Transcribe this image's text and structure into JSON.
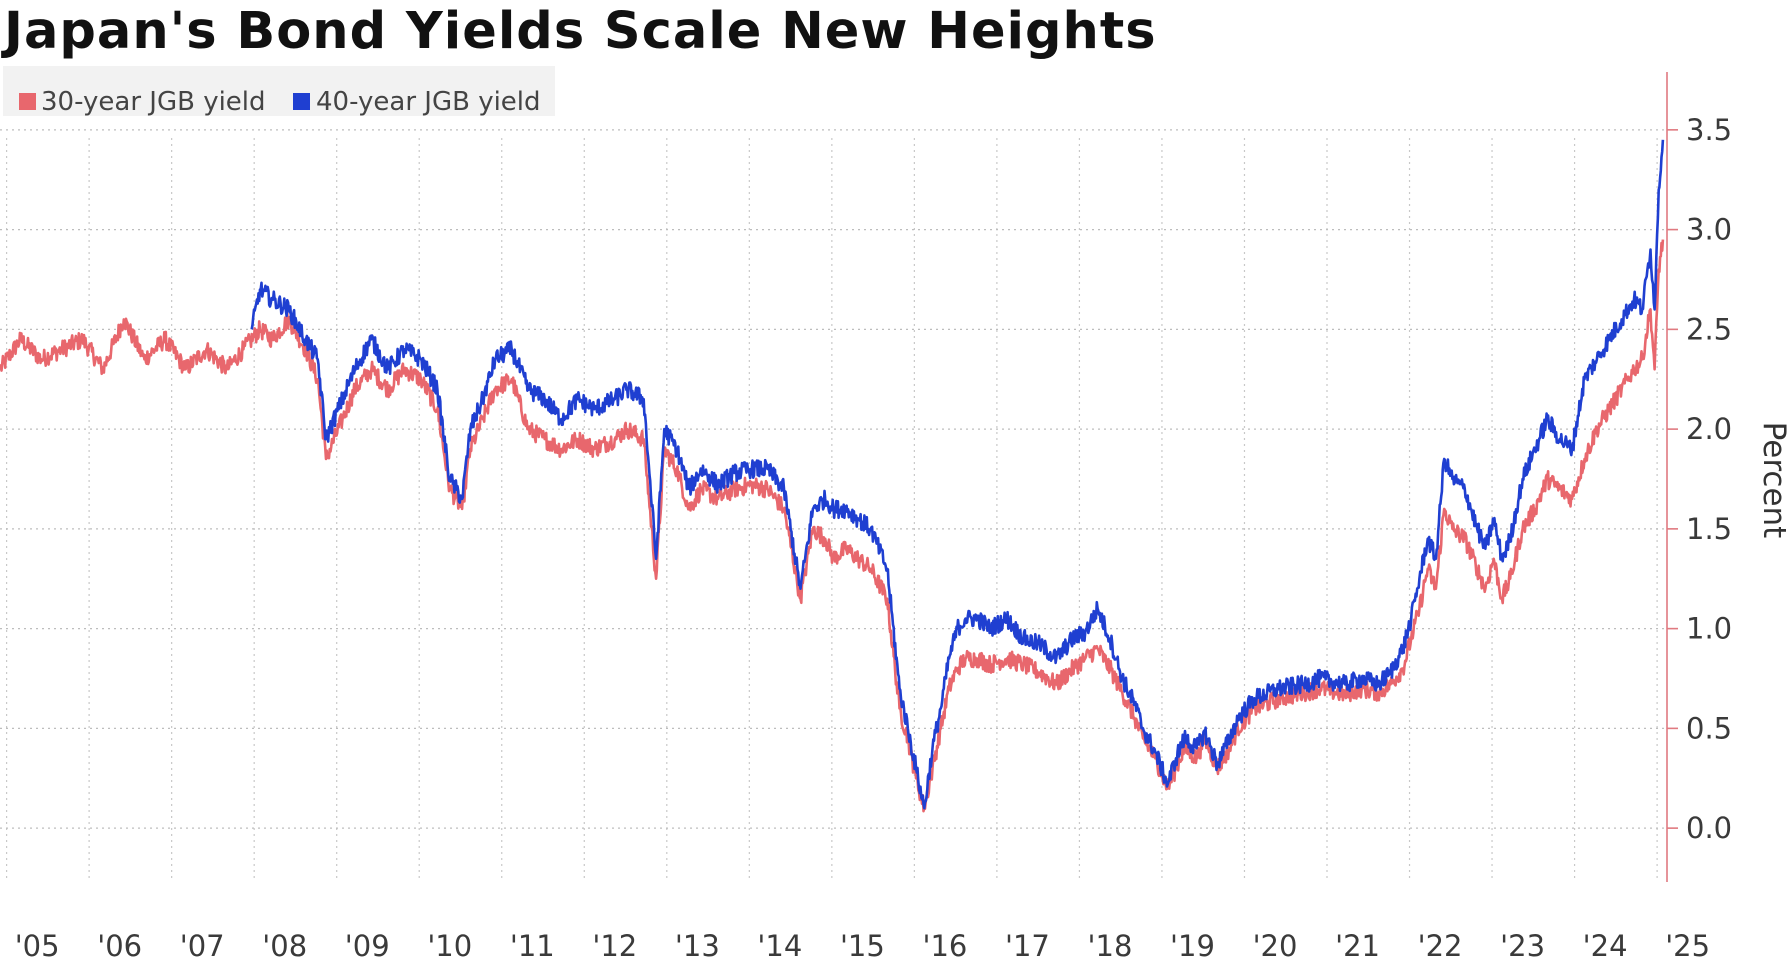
{
  "chart_data": {
    "type": "line",
    "title": "Japan's Bond Yields Scale New Heights",
    "ylabel": "Percent",
    "ylim": [
      -0.27,
      3.82
    ],
    "xlim": [
      2005.0,
      2025.2
    ],
    "y_ticks": [
      {
        "value": 0.0,
        "label": "0.0"
      },
      {
        "value": 0.5,
        "label": "0.5"
      },
      {
        "value": 1.0,
        "label": "1.0"
      },
      {
        "value": 1.5,
        "label": "1.5"
      },
      {
        "value": 2.0,
        "label": "2.0"
      },
      {
        "value": 2.5,
        "label": "2.5"
      },
      {
        "value": 3.0,
        "label": "3.0"
      },
      {
        "value": 3.5,
        "label": "3.5"
      }
    ],
    "x_ticks": [
      {
        "value": 2005,
        "label": "'05"
      },
      {
        "value": 2006,
        "label": "'06"
      },
      {
        "value": 2007,
        "label": "'07"
      },
      {
        "value": 2008,
        "label": "'08"
      },
      {
        "value": 2009,
        "label": "'09"
      },
      {
        "value": 2010,
        "label": "'10"
      },
      {
        "value": 2011,
        "label": "'11"
      },
      {
        "value": 2012,
        "label": "'12"
      },
      {
        "value": 2013,
        "label": "'13"
      },
      {
        "value": 2014,
        "label": "'14"
      },
      {
        "value": 2015,
        "label": "'15"
      },
      {
        "value": 2016,
        "label": "'16"
      },
      {
        "value": 2017,
        "label": "'17"
      },
      {
        "value": 2018,
        "label": "'18"
      },
      {
        "value": 2019,
        "label": "'19"
      },
      {
        "value": 2020,
        "label": "'20"
      },
      {
        "value": 2021,
        "label": "'21"
      },
      {
        "value": 2022,
        "label": "'22"
      },
      {
        "value": 2023,
        "label": "'23"
      },
      {
        "value": 2024,
        "label": "'24"
      },
      {
        "value": 2025,
        "label": "'25"
      }
    ],
    "grid": true,
    "legend": "top-left",
    "series": [
      {
        "name": "30-year JGB yield",
        "color": "#e8676d",
        "x": [
          2005.0,
          2005.25,
          2005.5,
          2005.75,
          2006.0,
          2006.25,
          2006.5,
          2006.75,
          2007.0,
          2007.25,
          2007.5,
          2007.75,
          2007.95,
          2008.15,
          2008.3,
          2008.5,
          2008.7,
          2008.85,
          2008.95,
          2009.15,
          2009.3,
          2009.5,
          2009.7,
          2009.9,
          2010.1,
          2010.3,
          2010.45,
          2010.6,
          2010.7,
          2010.85,
          2011.0,
          2011.2,
          2011.4,
          2011.6,
          2011.8,
          2012.0,
          2012.2,
          2012.45,
          2012.6,
          2012.8,
          2012.95,
          2013.05,
          2013.2,
          2013.35,
          2013.5,
          2013.7,
          2013.9,
          2014.1,
          2014.3,
          2014.5,
          2014.7,
          2014.85,
          2015.0,
          2015.1,
          2015.25,
          2015.4,
          2015.55,
          2015.75,
          2015.9,
          2016.0,
          2016.1,
          2016.2,
          2016.3,
          2016.4,
          2016.5,
          2016.6,
          2016.7,
          2016.85,
          2017.0,
          2017.2,
          2017.4,
          2017.6,
          2017.8,
          2018.0,
          2018.15,
          2018.3,
          2018.45,
          2018.6,
          2018.75,
          2018.85,
          2019.0,
          2019.15,
          2019.25,
          2019.35,
          2019.5,
          2019.6,
          2019.75,
          2019.9,
          2020.0,
          2020.2,
          2020.5,
          2020.8,
          2021.0,
          2021.3,
          2021.5,
          2021.7,
          2021.85,
          2022.0,
          2022.1,
          2022.2,
          2022.3,
          2022.4,
          2022.5,
          2022.6,
          2022.75,
          2022.9,
          2023.0,
          2023.1,
          2023.2,
          2023.3,
          2023.45,
          2023.6,
          2023.75,
          2023.9,
          2024.05,
          2024.2,
          2024.35,
          2024.5,
          2024.65,
          2024.8,
          2024.9,
          2025.0,
          2025.05,
          2025.1,
          2025.15
        ],
        "y": [
          2.3,
          2.45,
          2.35,
          2.4,
          2.45,
          2.3,
          2.55,
          2.35,
          2.45,
          2.3,
          2.4,
          2.3,
          2.4,
          2.5,
          2.45,
          2.55,
          2.4,
          2.25,
          1.85,
          2.05,
          2.2,
          2.3,
          2.2,
          2.3,
          2.25,
          2.1,
          1.7,
          1.6,
          1.9,
          2.05,
          2.2,
          2.25,
          2.0,
          1.95,
          1.9,
          1.95,
          1.9,
          1.95,
          2.0,
          1.95,
          1.25,
          1.9,
          1.8,
          1.6,
          1.7,
          1.65,
          1.7,
          1.72,
          1.7,
          1.6,
          1.15,
          1.5,
          1.45,
          1.35,
          1.4,
          1.35,
          1.3,
          1.15,
          0.6,
          0.45,
          0.25,
          0.1,
          0.3,
          0.5,
          0.7,
          0.8,
          0.85,
          0.85,
          0.82,
          0.85,
          0.82,
          0.78,
          0.72,
          0.8,
          0.85,
          0.9,
          0.8,
          0.68,
          0.55,
          0.45,
          0.35,
          0.2,
          0.3,
          0.4,
          0.35,
          0.45,
          0.3,
          0.4,
          0.5,
          0.6,
          0.65,
          0.68,
          0.7,
          0.67,
          0.7,
          0.68,
          0.72,
          0.8,
          0.95,
          1.1,
          1.3,
          1.2,
          1.6,
          1.5,
          1.45,
          1.3,
          1.2,
          1.35,
          1.15,
          1.25,
          1.5,
          1.6,
          1.75,
          1.7,
          1.65,
          1.85,
          2.0,
          2.1,
          2.2,
          2.3,
          2.35,
          2.6,
          2.3,
          2.8,
          2.95
        ]
      },
      {
        "name": "40-year JGB yield",
        "color": "#1f3fd1",
        "x": [
          2008.05,
          2008.15,
          2008.3,
          2008.5,
          2008.7,
          2008.85,
          2008.95,
          2009.15,
          2009.3,
          2009.5,
          2009.7,
          2009.9,
          2010.1,
          2010.3,
          2010.45,
          2010.6,
          2010.7,
          2010.85,
          2011.0,
          2011.2,
          2011.4,
          2011.6,
          2011.8,
          2012.0,
          2012.2,
          2012.45,
          2012.6,
          2012.8,
          2012.95,
          2013.05,
          2013.2,
          2013.35,
          2013.5,
          2013.7,
          2013.9,
          2014.1,
          2014.3,
          2014.5,
          2014.7,
          2014.85,
          2015.0,
          2015.1,
          2015.25,
          2015.4,
          2015.55,
          2015.75,
          2015.9,
          2016.0,
          2016.1,
          2016.2,
          2016.3,
          2016.4,
          2016.5,
          2016.6,
          2016.7,
          2016.85,
          2017.0,
          2017.2,
          2017.4,
          2017.6,
          2017.8,
          2018.0,
          2018.15,
          2018.3,
          2018.45,
          2018.6,
          2018.75,
          2018.85,
          2019.0,
          2019.15,
          2019.25,
          2019.35,
          2019.5,
          2019.6,
          2019.75,
          2019.9,
          2020.0,
          2020.2,
          2020.5,
          2020.8,
          2021.0,
          2021.3,
          2021.5,
          2021.7,
          2021.85,
          2022.0,
          2022.1,
          2022.2,
          2022.3,
          2022.4,
          2022.5,
          2022.6,
          2022.75,
          2022.9,
          2023.0,
          2023.1,
          2023.2,
          2023.3,
          2023.45,
          2023.6,
          2023.75,
          2023.9,
          2024.05,
          2024.2,
          2024.35,
          2024.5,
          2024.65,
          2024.8,
          2024.9,
          2025.0,
          2025.05,
          2025.1,
          2025.15
        ],
        "y": [
          2.5,
          2.7,
          2.65,
          2.6,
          2.45,
          2.35,
          1.95,
          2.15,
          2.3,
          2.45,
          2.3,
          2.4,
          2.35,
          2.2,
          1.75,
          1.65,
          2.0,
          2.15,
          2.35,
          2.4,
          2.2,
          2.15,
          2.05,
          2.15,
          2.1,
          2.15,
          2.2,
          2.15,
          1.35,
          2.0,
          1.9,
          1.7,
          1.8,
          1.72,
          1.78,
          1.8,
          1.8,
          1.7,
          1.2,
          1.6,
          1.65,
          1.6,
          1.6,
          1.55,
          1.5,
          1.3,
          0.7,
          0.5,
          0.3,
          0.1,
          0.4,
          0.6,
          0.85,
          1.0,
          1.05,
          1.05,
          1.0,
          1.05,
          0.95,
          0.92,
          0.85,
          0.95,
          0.98,
          1.1,
          0.95,
          0.75,
          0.62,
          0.5,
          0.38,
          0.22,
          0.35,
          0.45,
          0.4,
          0.48,
          0.32,
          0.45,
          0.55,
          0.65,
          0.7,
          0.72,
          0.75,
          0.72,
          0.75,
          0.72,
          0.78,
          0.9,
          1.05,
          1.25,
          1.45,
          1.35,
          1.85,
          1.75,
          1.7,
          1.5,
          1.4,
          1.55,
          1.35,
          1.45,
          1.75,
          1.9,
          2.05,
          1.95,
          1.9,
          2.25,
          2.35,
          2.45,
          2.55,
          2.65,
          2.6,
          2.9,
          2.6,
          3.2,
          3.45
        ]
      }
    ]
  }
}
